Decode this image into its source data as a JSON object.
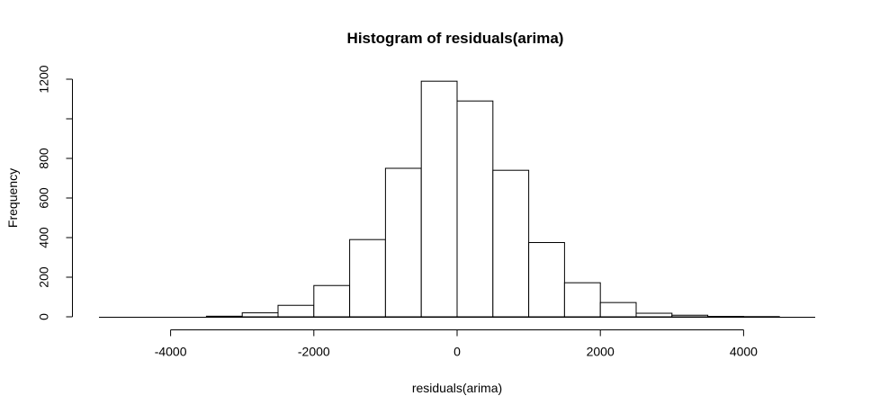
{
  "chart_data": {
    "type": "bar",
    "title": "Histogram of residuals(arima)",
    "xlabel": "residuals(arima)",
    "ylabel": "Frequency",
    "bin_edges": [
      -5000,
      -4500,
      -4000,
      -3500,
      -3000,
      -2500,
      -2000,
      -1500,
      -1000,
      -500,
      0,
      500,
      1000,
      1500,
      2000,
      2500,
      3000,
      3500,
      4000,
      4500,
      5000
    ],
    "values": [
      0,
      0,
      0,
      3,
      20,
      58,
      158,
      390,
      750,
      1190,
      1090,
      740,
      375,
      172,
      72,
      18,
      8,
      2,
      1,
      0
    ],
    "xlim": [
      -5000,
      5000
    ],
    "ylim": [
      0,
      1200
    ],
    "x_ticks": [
      -4000,
      -2000,
      0,
      2000,
      4000
    ],
    "x_tick_labels": [
      "-4000",
      "-2000",
      "0",
      "2000",
      "4000"
    ],
    "y_ticks": [
      0,
      200,
      400,
      600,
      800,
      1000,
      1200
    ],
    "y_tick_labels": [
      "0",
      "200",
      "400",
      "600",
      "800",
      "",
      "1200"
    ],
    "bar_fill": "#ffffff",
    "bar_stroke": "#000000",
    "grid": false,
    "legend": "none"
  }
}
